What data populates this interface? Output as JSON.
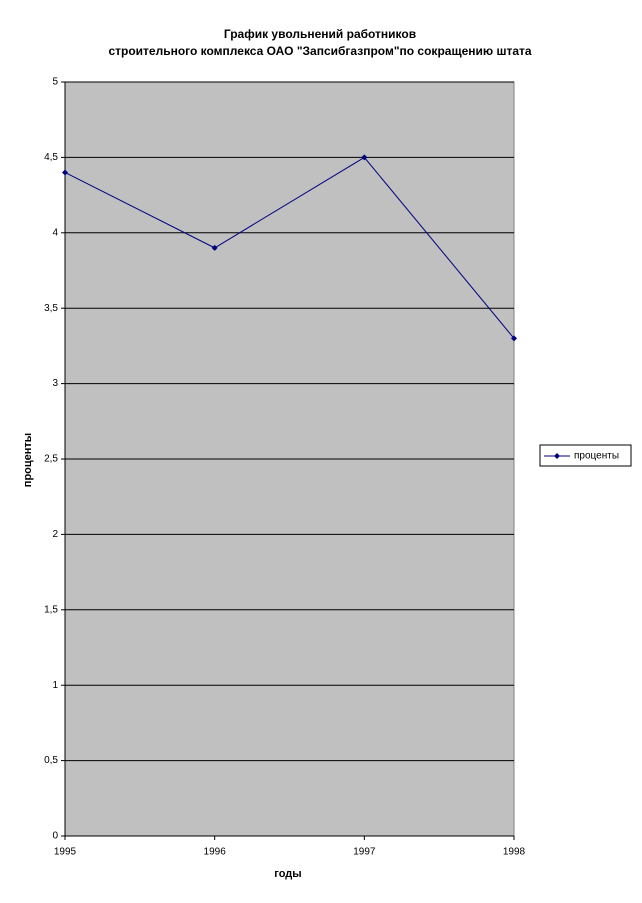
{
  "chart_data": {
    "type": "line",
    "title": [
      "График увольнений работников",
      "строительного комплекса ОАО \"Запсибгазпром\"по сокращению штата"
    ],
    "x_label": "годы",
    "y_label": "проценты",
    "categories": [
      "1995",
      "1996",
      "1997",
      "1998"
    ],
    "series": [
      {
        "name": "проценты",
        "color": "#000080",
        "values": [
          4.4,
          3.9,
          4.5,
          3.3
        ]
      }
    ],
    "ylim": [
      0,
      5
    ],
    "yticks": [
      0,
      {
        "value": 0.5,
        "label": "0,5"
      },
      1,
      {
        "value": 1.5,
        "label": "1,5"
      },
      2,
      {
        "value": 2.5,
        "label": "2,5"
      },
      3,
      {
        "value": 3.5,
        "label": "3,5"
      },
      4,
      {
        "value": 4.5,
        "label": "4,5"
      },
      5
    ],
    "grid": true,
    "legend": "right",
    "plot_background": "#c0c0c0"
  }
}
